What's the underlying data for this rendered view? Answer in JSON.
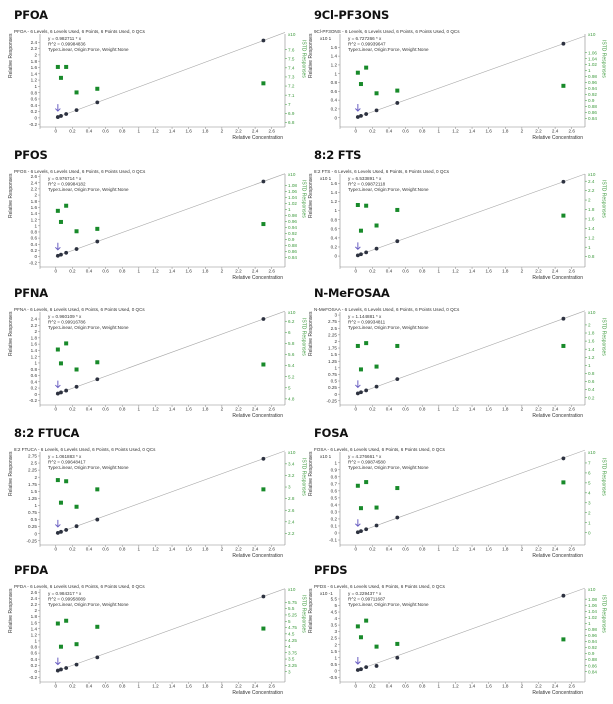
{
  "colors": {
    "calibration_point": "#2d3240",
    "qc_point": "#188a2a",
    "fit_line": "#a8a8a8",
    "right_axis": "#3c9a3c",
    "marker_arrow": "#6a5fc2",
    "axis": "#888888"
  },
  "axis_labels": {
    "y_left": "Relative Responses",
    "x": "Relative Concentration",
    "y_right": "ISTD Responses"
  },
  "chart_data": [
    {
      "type": "scatter",
      "title": "PFOA",
      "subtitle": "PFOA - 6 Levels, 6 Levels Used, 6 Points, 6 Points Used, 0 QCs",
      "equation": "y = 0.982711 * x",
      "r2": "R^2 = 0.99984836",
      "fit_type": "Type:Linear, Origin:Force, Weight:None",
      "slope": 0.982711,
      "y_multiplier": "",
      "ylim": [
        -0.29,
        2.6
      ],
      "yticks": [
        -0.2,
        0,
        0.2,
        0.4,
        0.6,
        0.8,
        1,
        1.2,
        1.4,
        1.6,
        1.8,
        2,
        2.2,
        2.4
      ],
      "y2_multiplier": "x10",
      "y2lim": [
        6.75,
        7.75
      ],
      "y2ticks": [
        6.8,
        6.9,
        7,
        7.1,
        7.2,
        7.3,
        7.4,
        7.5,
        7.6
      ],
      "xlim": [
        -0.19,
        2.76
      ],
      "xticks": [
        0,
        0.2,
        0.4,
        0.6,
        0.8,
        1,
        1.2,
        1.4,
        1.6,
        1.8,
        2,
        2.2,
        2.4,
        2.6
      ],
      "x": [
        0.025,
        0.0625,
        0.125,
        0.25,
        0.5,
        2.5
      ],
      "y": [
        0.025,
        0.061,
        0.123,
        0.246,
        0.491,
        2.457
      ],
      "qc_y": [
        7.41,
        7.29,
        7.41,
        7.13,
        7.17,
        7.23
      ]
    },
    {
      "type": "scatter",
      "title": "9Cl-PF3ONS",
      "subtitle": "9Cl-PF3ONS - 6 Levels, 6 Levels Used, 6 Points, 6 Points Used, 0 QCs",
      "equation": "y = 6.727266 * x",
      "r2": "R^2 = 0.99939647",
      "fit_type": "Type:Linear, Origin:Force, Weight:None",
      "slope": 0.6727266,
      "y_multiplier": "x10 1",
      "ylim": [
        -0.21,
        1.857
      ],
      "yticks": [
        0,
        0.2,
        0.4,
        0.6,
        0.8,
        1,
        1.2,
        1.4,
        1.6
      ],
      "y2_multiplier": "x10",
      "y2lim": [
        0.811,
        1.116
      ],
      "y2ticks": [
        0.84,
        0.86,
        0.88,
        0.9,
        0.92,
        0.94,
        0.96,
        0.98,
        1,
        1.02,
        1.04,
        1.06
      ],
      "xlim": [
        -0.19,
        2.76
      ],
      "xticks": [
        0,
        0.2,
        0.4,
        0.6,
        0.8,
        1,
        1.2,
        1.4,
        1.6,
        1.8,
        2,
        2.2,
        2.4,
        2.6
      ],
      "x": [
        0.025,
        0.0625,
        0.125,
        0.25,
        0.5,
        2.5
      ],
      "y": [
        0.017,
        0.042,
        0.084,
        0.168,
        0.336,
        1.682
      ],
      "qc_y": [
        0.993,
        0.955,
        1.01,
        0.924,
        0.933,
        0.949
      ]
    },
    {
      "type": "scatter",
      "title": "PFOS",
      "subtitle": "PFOS - 6 Levels, 6 Levels Used, 6 Points, 6 Points Used, 0 QCs",
      "equation": "y = 0.976714 * x",
      "r2": "R^2 = 0.99984182",
      "fit_type": "Type:Linear, Origin:Force, Weight:None",
      "slope": 0.976714,
      "y_multiplier": "",
      "ylim": [
        -0.34,
        2.62
      ],
      "yticks": [
        -0.2,
        0,
        0.2,
        0.4,
        0.6,
        0.8,
        1,
        1.2,
        1.4,
        1.6,
        1.8,
        2,
        2.2,
        2.4,
        2.6
      ],
      "y2_multiplier": "x10",
      "y2lim": [
        0.808,
        1.111
      ],
      "y2ticks": [
        0.84,
        0.86,
        0.88,
        0.9,
        0.92,
        0.94,
        0.96,
        0.98,
        1,
        1.02,
        1.04,
        1.06,
        1.08
      ],
      "xlim": [
        -0.19,
        2.76
      ],
      "xticks": [
        0,
        0.2,
        0.4,
        0.6,
        0.8,
        1,
        1.2,
        1.4,
        1.6,
        1.8,
        2,
        2.2,
        2.4,
        2.6
      ],
      "x": [
        0.025,
        0.0625,
        0.125,
        0.25,
        0.5,
        2.5
      ],
      "y": [
        0.024,
        0.061,
        0.122,
        0.244,
        0.488,
        2.442
      ],
      "qc_y": [
        0.995,
        0.958,
        1.012,
        0.927,
        0.935,
        0.951
      ]
    },
    {
      "type": "scatter",
      "title": "8:2 FTS",
      "subtitle": "8:2 FTS - 6 Levels, 6 Levels Used, 6 Points, 6 Points Used, 0 QCs",
      "equation": "y = 6.533891 * x",
      "r2": "R^2 = 0.99872118",
      "fit_type": "Type:Linear, Origin:Force, Weight:None",
      "slope": 0.6533891,
      "y_multiplier": "x10 1",
      "ylim": [
        -0.24,
        1.76
      ],
      "yticks": [
        0,
        0.2,
        0.4,
        0.6,
        0.8,
        1,
        1.2,
        1.4,
        1.6
      ],
      "y2_multiplier": "x10",
      "y2lim": [
        0.58,
        2.51
      ],
      "y2ticks": [
        0.8,
        1,
        1.2,
        1.4,
        1.6,
        1.8,
        2,
        2.2,
        2.4
      ],
      "xlim": [
        -0.19,
        2.76
      ],
      "xticks": [
        0,
        0.2,
        0.4,
        0.6,
        0.8,
        1,
        1.2,
        1.4,
        1.6,
        1.8,
        2,
        2.2,
        2.4,
        2.6
      ],
      "x": [
        0.025,
        0.0625,
        0.125,
        0.25,
        0.5,
        2.5
      ],
      "y": [
        0.016,
        0.041,
        0.082,
        0.163,
        0.327,
        1.633
      ],
      "qc_y": [
        1.895,
        1.35,
        1.88,
        1.46,
        1.79,
        1.67
      ]
    },
    {
      "type": "scatter",
      "title": "PFNA",
      "subtitle": "PFNA - 6 Levels, 6 Levels Used, 6 Points, 6 Points Used, 0 QCs",
      "equation": "y = 0.960109 * x",
      "r2": "R^2 = 0.99916786",
      "fit_type": "Type:Linear, Origin:Force, Weight:None",
      "slope": 0.960109,
      "y_multiplier": "",
      "ylim": [
        -0.34,
        2.56
      ],
      "yticks": [
        -0.2,
        0,
        0.2,
        0.4,
        0.6,
        0.8,
        1,
        1.2,
        1.4,
        1.6,
        1.8,
        2,
        2.2,
        2.4
      ],
      "y2_multiplier": "x10",
      "y2lim": [
        4.69,
        6.33
      ],
      "y2ticks": [
        4.8,
        5,
        5.2,
        5.4,
        5.6,
        5.8,
        6,
        6.2
      ],
      "xlim": [
        -0.19,
        2.76
      ],
      "xticks": [
        0,
        0.2,
        0.4,
        0.6,
        0.8,
        1,
        1.2,
        1.4,
        1.6,
        1.8,
        2,
        2.2,
        2.4,
        2.6
      ],
      "x": [
        0.025,
        0.0625,
        0.125,
        0.25,
        0.5,
        2.5
      ],
      "y": [
        0.024,
        0.06,
        0.12,
        0.24,
        0.48,
        2.4
      ],
      "qc_y": [
        5.69,
        5.44,
        5.8,
        5.33,
        5.46,
        5.42
      ]
    },
    {
      "type": "scatter",
      "title": "N-MeFOSAA",
      "subtitle": "N-MeFOSAA - 6 Levels, 6 Levels Used, 6 Points, 6 Points Used, 0 QCs",
      "equation": "y = 1.144881 * x",
      "r2": "R^2 = 0.99934811",
      "fit_type": "Type:Linear, Origin:Force, Weight:None",
      "slope": 1.144881,
      "y_multiplier": "",
      "ylim": [
        -0.41,
        3.04
      ],
      "yticks": [
        -0.25,
        0,
        0.25,
        0.5,
        0.75,
        1,
        1.25,
        1.5,
        1.75,
        2,
        2.25,
        2.5,
        2.75,
        3
      ],
      "y2_multiplier": "x10",
      "y2lim": [
        0.02,
        2.27
      ],
      "y2ticks": [
        0.2,
        0.4,
        0.6,
        0.8,
        1,
        1.2,
        1.4,
        1.6,
        1.8,
        2
      ],
      "xlim": [
        -0.19,
        2.76
      ],
      "xticks": [
        0,
        0.2,
        0.4,
        0.6,
        0.8,
        1,
        1.2,
        1.4,
        1.6,
        1.8,
        2,
        2.2,
        2.4,
        2.6
      ],
      "x": [
        0.025,
        0.0625,
        0.125,
        0.25,
        0.5,
        2.5
      ],
      "y": [
        0.029,
        0.072,
        0.143,
        0.286,
        0.572,
        2.862
      ],
      "qc_y": [
        1.48,
        0.9,
        1.55,
        0.97,
        1.48,
        1.48
      ]
    },
    {
      "type": "scatter",
      "title": "8:2 FTUCA",
      "subtitle": "8:2 FTUCA - 6 Levels, 6 Levels Used, 6 Points, 6 Points Used, 0 QCs",
      "equation": "y = 1.061883 * x",
      "r2": "R^2 = 0.99648417",
      "fit_type": "Type:Linear, Origin:Force, Weight:None",
      "slope": 1.061883,
      "y_multiplier": "",
      "ylim": [
        -0.4,
        2.82
      ],
      "yticks": [
        -0.25,
        0,
        0.25,
        0.5,
        0.75,
        1,
        1.25,
        1.5,
        1.75,
        2,
        2.25,
        2.5,
        2.75
      ],
      "y2_multiplier": "x10",
      "y2lim": [
        2.0,
        3.57
      ],
      "y2ticks": [
        2.2,
        2.4,
        2.6,
        2.8,
        3,
        3.2,
        3.4
      ],
      "xlim": [
        -0.19,
        2.76
      ],
      "xticks": [
        0,
        0.2,
        0.4,
        0.6,
        0.8,
        1,
        1.2,
        1.4,
        1.6,
        1.8,
        2,
        2.2,
        2.4,
        2.6
      ],
      "x": [
        0.025,
        0.0625,
        0.125,
        0.25,
        0.5,
        2.5
      ],
      "y": [
        0.027,
        0.066,
        0.133,
        0.265,
        0.5,
        2.65
      ],
      "qc_y": [
        3.12,
        2.73,
        3.1,
        2.66,
        2.96,
        2.96
      ]
    },
    {
      "type": "scatter",
      "title": "FOSA",
      "subtitle": "FOSA - 6 Levels, 6 Levels Used, 6 Points, 6 Points Used, 0 QCs",
      "equation": "y = 4.276661 * x",
      "r2": "R^2 = 0.99874580",
      "fit_type": "Type:Linear, Origin:Force, Weight:None",
      "slope": 0.4276661,
      "y_multiplier": "x10 1",
      "ylim": [
        -0.171,
        1.125
      ],
      "yticks": [
        -0.1,
        0,
        0.1,
        0.2,
        0.3,
        0.4,
        0.5,
        0.6,
        0.7,
        0.8,
        0.9,
        1
      ],
      "y2_multiplier": "x10",
      "y2lim": [
        -1.24,
        7.9
      ],
      "y2ticks": [
        0,
        1,
        2,
        3,
        4,
        5,
        6,
        7
      ],
      "xlim": [
        -0.19,
        2.76
      ],
      "xticks": [
        0,
        0.2,
        0.4,
        0.6,
        0.8,
        1,
        1.2,
        1.4,
        1.6,
        1.8,
        2,
        2.2,
        2.4,
        2.6
      ],
      "x": [
        0.025,
        0.0625,
        0.125,
        0.25,
        0.5,
        2.5
      ],
      "y": [
        0.011,
        0.027,
        0.053,
        0.107,
        0.22,
        1.062
      ],
      "qc_y": [
        4.71,
        2.46,
        5.08,
        2.52,
        4.48,
        5.05
      ]
    },
    {
      "type": "scatter",
      "title": "PFDA",
      "subtitle": "PFDA - 6 Levels, 6 Levels Used, 6 Points, 6 Points Used, 0 QCs",
      "equation": "y = 0.984317 * x",
      "r2": "R^2 = 0.99958089",
      "fit_type": "Type:Linear, Origin:Force, Weight:None",
      "slope": 0.984317,
      "y_multiplier": "",
      "ylim": [
        -0.35,
        2.64
      ],
      "yticks": [
        -0.2,
        0,
        0.2,
        0.4,
        0.6,
        0.8,
        1,
        1.2,
        1.4,
        1.6,
        1.8,
        2,
        2.2,
        2.4,
        2.6
      ],
      "y2_multiplier": "x10",
      "y2lim": [
        2.59,
        6.2
      ],
      "y2ticks": [
        3,
        3.25,
        3.5,
        3.75,
        4,
        4.25,
        4.5,
        4.75,
        5,
        5.25,
        5.5,
        5.75
      ],
      "xlim": [
        -0.19,
        2.76
      ],
      "xticks": [
        0,
        0.2,
        0.4,
        0.6,
        0.8,
        1,
        1.2,
        1.4,
        1.6,
        1.8,
        2,
        2.2,
        2.4,
        2.6
      ],
      "x": [
        0.025,
        0.0625,
        0.125,
        0.25,
        0.5,
        2.5
      ],
      "y": [
        0.025,
        0.062,
        0.11,
        0.22,
        0.46,
        2.46
      ],
      "qc_y": [
        4.91,
        3.99,
        5.02,
        4.09,
        4.78,
        4.71
      ]
    },
    {
      "type": "scatter",
      "title": "PFDS",
      "subtitle": "PFDS - 6 Levels, 6 Levels Used, 6 Points, 6 Points Used, 0 QCs",
      "equation": "y = 0.229437 * x",
      "r2": "R^2 = 0.99711687",
      "fit_type": "Type:Linear, Origin:Force, Weight:None",
      "slope": 2.29437,
      "y_multiplier": "x10 -1",
      "ylim": [
        -0.86,
        6.11
      ],
      "yticks": [
        -0.5,
        0,
        0.5,
        1,
        1.5,
        2,
        2.5,
        3,
        3.5,
        4,
        4.5,
        5,
        5.5
      ],
      "y2_multiplier": "x10",
      "y2lim": [
        0.806,
        1.107
      ],
      "y2ticks": [
        0.84,
        0.86,
        0.88,
        0.9,
        0.92,
        0.94,
        0.96,
        0.98,
        1,
        1.02,
        1.04,
        1.06,
        1.08
      ],
      "xlim": [
        -0.19,
        2.76
      ],
      "xticks": [
        0,
        0.2,
        0.4,
        0.6,
        0.8,
        1,
        1.2,
        1.4,
        1.6,
        1.8,
        2,
        2.2,
        2.4,
        2.6
      ],
      "x": [
        0.025,
        0.0625,
        0.125,
        0.25,
        0.5,
        2.5
      ],
      "y": [
        0.06,
        0.12,
        0.28,
        0.37,
        1.0,
        5.75
      ],
      "qc_y": [
        0.99,
        0.954,
        1.009,
        0.923,
        0.932,
        0.947
      ]
    }
  ]
}
